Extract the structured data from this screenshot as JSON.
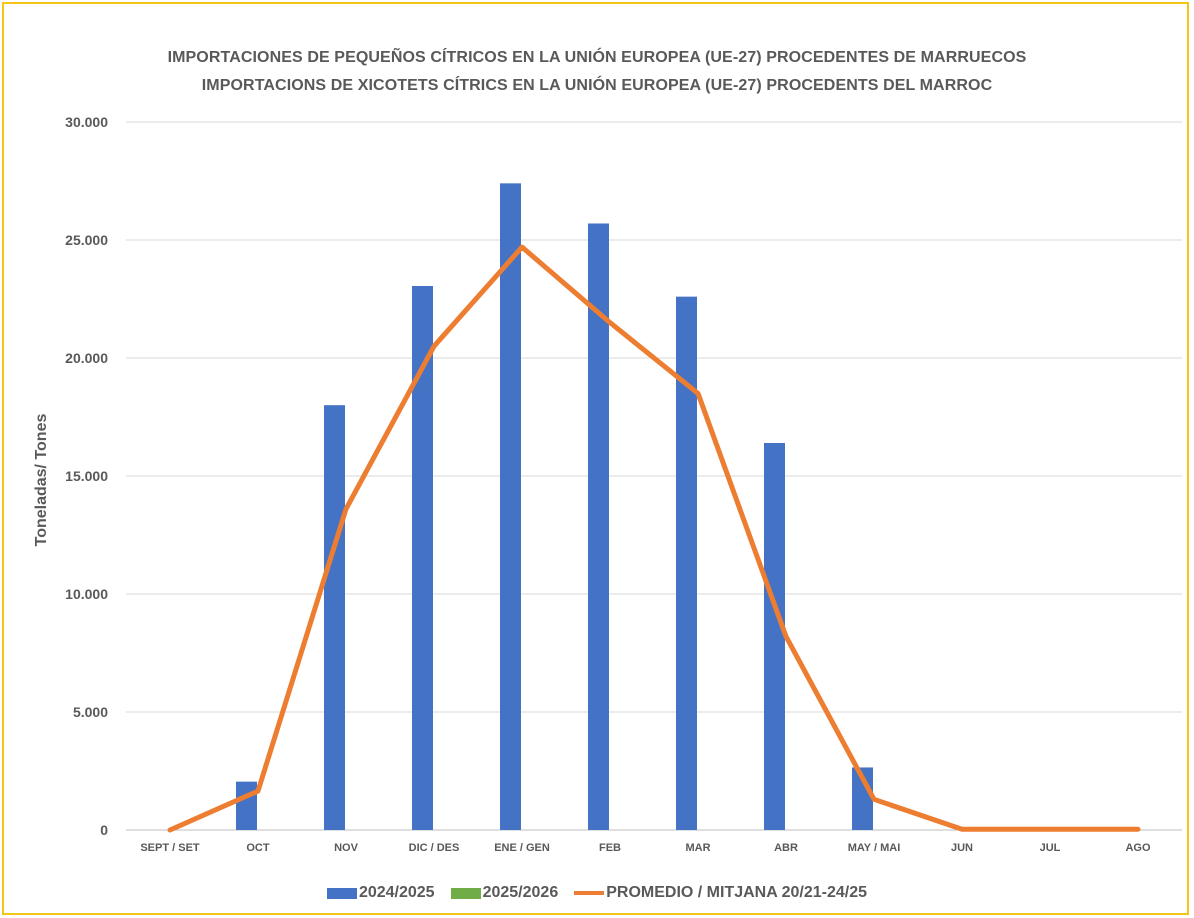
{
  "chart_data": {
    "type": "bar",
    "title": "IMPORTACIONES DE PEQUEÑOS CÍTRICOS EN LA UNIÓN EUROPEA (UE-27) PROCEDENTES DE MARRUECOS",
    "subtitle": "IMPORTACIONS DE XICOTETS CÍTRICS EN LA UNIÓN EUROPEA (UE-27) PROCEDENTS DEL MARROC",
    "xlabel": "",
    "ylabel": "Toneladas/ Tones",
    "ylim": [
      0,
      30000
    ],
    "y_ticks": [
      "0",
      "5.000",
      "10.000",
      "15.000",
      "20.000",
      "25.000",
      "30.000"
    ],
    "categories": [
      "SEPT / SET",
      "OCT",
      "NOV",
      "DIC / DES",
      "ENE / GEN",
      "FEB",
      "MAR",
      "ABR",
      "MAY / MAI",
      "JUN",
      "JUL",
      "AGO"
    ],
    "grid": true,
    "legend_position": "bottom",
    "series": [
      {
        "name": "2024/2025",
        "type": "bar",
        "color": "#4472c4",
        "values": [
          0,
          2050,
          18000,
          23050,
          27400,
          25700,
          22600,
          16400,
          2650,
          0,
          0,
          0
        ]
      },
      {
        "name": "2025/2026",
        "type": "bar",
        "color": "#70ad47",
        "values": [
          0,
          0,
          0,
          0,
          0,
          0,
          0,
          0,
          0,
          0,
          0,
          0
        ]
      },
      {
        "name": "PROMEDIO / MITJANA 20/21-24/25",
        "type": "line",
        "color": "#ed7d31",
        "values": [
          0,
          1650,
          13600,
          20500,
          24700,
          21500,
          18500,
          8200,
          1300,
          30,
          30,
          30
        ]
      }
    ]
  }
}
